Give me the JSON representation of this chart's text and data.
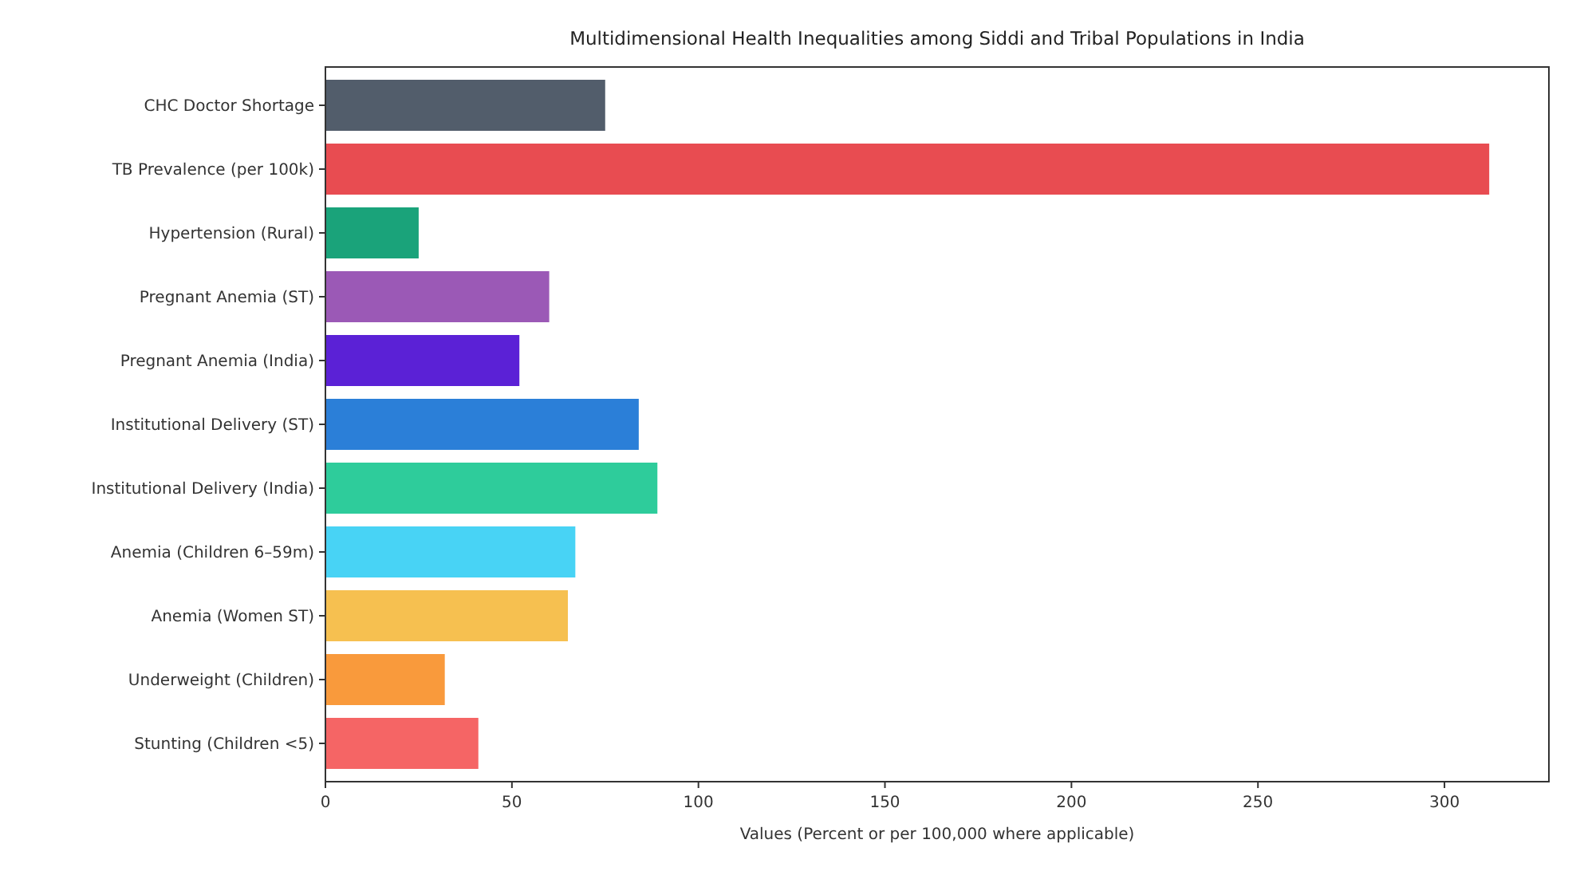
{
  "chart_data": {
    "type": "bar",
    "orientation": "horizontal",
    "title": "Multidimensional Health Inequalities among Siddi and Tribal Populations in India",
    "xlabel": "Values (Percent or per 100,000 where applicable)",
    "categories": [
      "CHC Doctor Shortage",
      "TB Prevalence (per 100k)",
      "Hypertension (Rural)",
      "Pregnant Anemia (ST)",
      "Pregnant Anemia (India)",
      "Institutional Delivery (ST)",
      "Institutional Delivery (India)",
      "Anemia (Children 6–59m)",
      "Anemia (Women ST)",
      "Underweight (Children)",
      "Stunting (Children <5)"
    ],
    "values": [
      75,
      312,
      25,
      60,
      52,
      84,
      89,
      67,
      65,
      32,
      41
    ],
    "colors": [
      "#525d6b",
      "#e84c51",
      "#1aa37a",
      "#9b59b6",
      "#5b21d6",
      "#2b7fd8",
      "#2ecc9b",
      "#48d3f5",
      "#f6c050",
      "#f99a3c",
      "#f56565"
    ],
    "xlim": [
      0,
      328
    ],
    "xticks": [
      0,
      50,
      100,
      150,
      200,
      250,
      300
    ],
    "grid": false
  }
}
